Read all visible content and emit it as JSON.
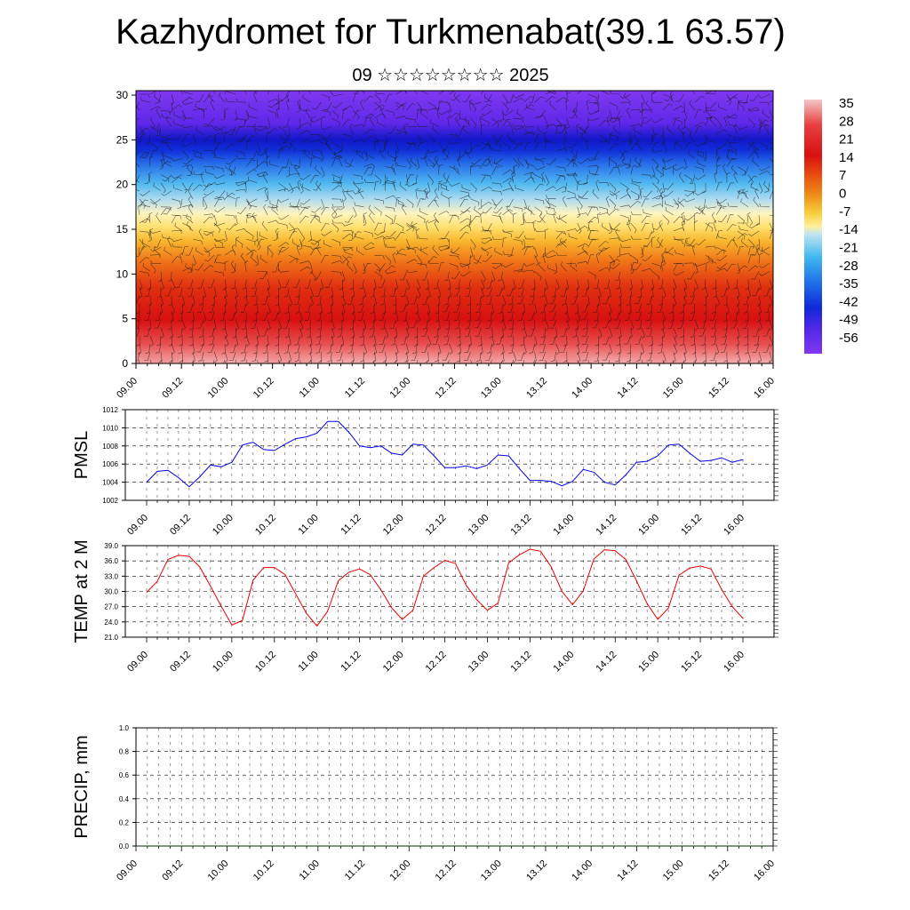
{
  "title": "Kazhydromet for Turkmenabat(39.1 63.57)",
  "subtitle": "09 ☆☆☆☆☆☆☆☆ 2025",
  "time_labels": [
    "09.00",
    "09.12",
    "10.00",
    "10.12",
    "11.00",
    "11.12",
    "12.00",
    "12.12",
    "13.00",
    "13.12",
    "14.00",
    "14.12",
    "15.00",
    "15.12",
    "16.00"
  ],
  "chart_data": [
    {
      "type": "heatmap",
      "description_key": "temperature_cross_section_with_wind_barbs",
      "y_ticks": [
        0,
        5,
        10,
        15,
        20,
        25,
        30
      ],
      "ylim": [
        0,
        30.5
      ],
      "colorbar": {
        "labels": [
          "35",
          "28",
          "21",
          "14",
          "7",
          "0",
          "-7",
          "-14",
          "-21",
          "-28",
          "-35",
          "-42",
          "-49",
          "-56"
        ],
        "colors_top_to_bottom": [
          "#f4c6c6",
          "#e84040",
          "#d81010",
          "#e85010",
          "#f08818",
          "#f8c838",
          "#fff0a0",
          "#b8e0f0",
          "#40b8f0",
          "#2878e8",
          "#1848e0",
          "#1020d8",
          "#6028e8",
          "#8038f0"
        ]
      }
    },
    {
      "type": "line",
      "ylabel": "PMSL",
      "ylim": [
        1002,
        1012
      ],
      "y_ticks": [
        "1002",
        "1004",
        "1006",
        "1008",
        "1010",
        "1012"
      ],
      "series": [
        {
          "color": "#0000ee",
          "values": [
            1004.0,
            1005.2,
            1005.3,
            1004.5,
            1003.5,
            1004.6,
            1005.9,
            1005.7,
            1006.2,
            1008.1,
            1008.4,
            1007.6,
            1007.5,
            1008.2,
            1008.8,
            1009.0,
            1009.4,
            1010.7,
            1010.7,
            1009.5,
            1008.0,
            1007.8,
            1008.0,
            1007.2,
            1007.0,
            1008.2,
            1008.1,
            1006.9,
            1005.6,
            1005.6,
            1005.8,
            1005.5,
            1005.9,
            1007.0,
            1006.9,
            1005.5,
            1004.2,
            1004.2,
            1004.1,
            1003.6,
            1004.1,
            1005.4,
            1005.1,
            1004.0,
            1003.7,
            1004.8,
            1006.2,
            1006.3,
            1006.9,
            1008.1,
            1008.2,
            1007.2,
            1006.3,
            1006.4,
            1006.7,
            1006.2,
            1006.5
          ]
        }
      ]
    },
    {
      "type": "line",
      "ylabel": "TEMP at 2 M",
      "ylim": [
        21,
        39
      ],
      "y_ticks": [
        "21.0",
        "24.0",
        "27.0",
        "30.0",
        "33.0",
        "36.0",
        "39.0"
      ],
      "series": [
        {
          "color": "#ee0000",
          "values": [
            29.8,
            32.0,
            36.3,
            37.1,
            36.9,
            34.8,
            31.0,
            27.1,
            23.4,
            24.3,
            32.2,
            34.7,
            34.7,
            33.3,
            29.5,
            25.7,
            23.2,
            26.1,
            32.1,
            33.8,
            34.4,
            33.3,
            30.3,
            26.8,
            24.5,
            26.3,
            33.0,
            34.7,
            36.1,
            35.5,
            31.2,
            28.4,
            26.3,
            27.7,
            35.6,
            37.2,
            38.3,
            37.9,
            34.8,
            30.0,
            27.4,
            30.1,
            36.4,
            38.2,
            38.0,
            36.3,
            32.1,
            27.6,
            24.5,
            26.7,
            33.2,
            34.6,
            35.0,
            34.4,
            30.4,
            27.0,
            24.7
          ]
        }
      ]
    },
    {
      "type": "line",
      "ylabel": "PRECIP, mm",
      "ylim": [
        0,
        1
      ],
      "y_ticks": [
        "0.0",
        "0.2",
        "0.4",
        "0.6",
        "0.8",
        "1.0"
      ],
      "series": [
        {
          "color": "#003300",
          "values": [
            0,
            0,
            0,
            0,
            0,
            0,
            0,
            0,
            0,
            0,
            0,
            0,
            0,
            0,
            0,
            0,
            0,
            0,
            0,
            0,
            0,
            0,
            0,
            0,
            0,
            0,
            0,
            0,
            0,
            0,
            0,
            0,
            0,
            0,
            0,
            0,
            0,
            0,
            0,
            0,
            0,
            0,
            0,
            0,
            0,
            0,
            0,
            0,
            0,
            0,
            0,
            0,
            0,
            0,
            0,
            0,
            0
          ]
        }
      ]
    }
  ]
}
